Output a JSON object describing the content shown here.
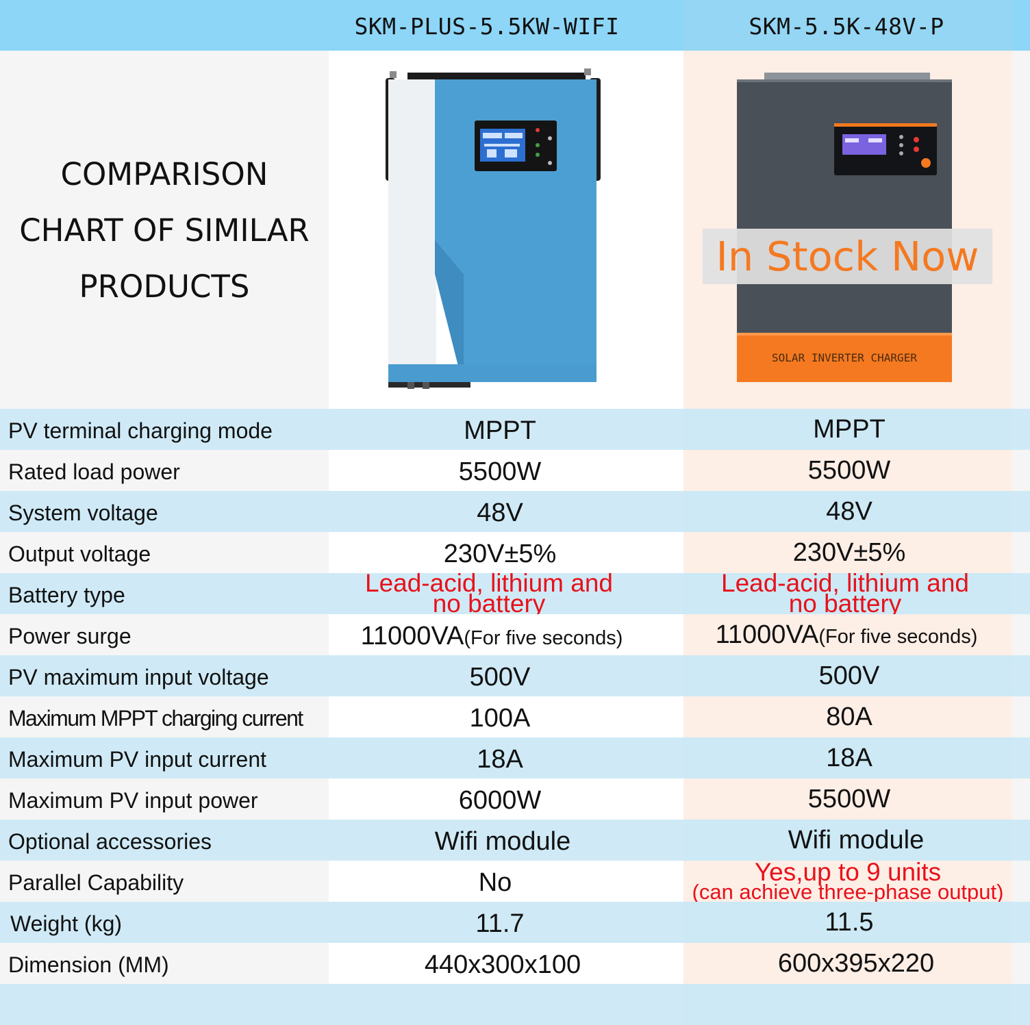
{
  "header": {
    "product_1": "SKM-PLUS-5.5KW-WIFI",
    "product_2": "SKM-5.5K-48V-P"
  },
  "heading": {
    "line1": "COMPARISON",
    "line2": "CHART OF SIMILAR",
    "line3": "PRODUCTS"
  },
  "product_2_image": {
    "panel_label": "SOLAR INVERTER CHARGER",
    "badge": "In Stock Now"
  },
  "colors": {
    "header_band": "#8dd6f7",
    "row_alt": "#cfeaf6",
    "right_column": "#fdeee6",
    "highlight_red": "#e8111a",
    "badge_orange": "#f47920",
    "product_1_blue": "#4c9fd3",
    "product_2_gray": "#4a5058"
  },
  "specs": [
    {
      "label": "PV terminal charging mode",
      "v1": "MPPT",
      "v2": "MPPT"
    },
    {
      "label": "Rated load power",
      "v1": "5500W",
      "v2": "5500W"
    },
    {
      "label": "System voltage",
      "v1": "48V",
      "v2": "48V"
    },
    {
      "label": "Output voltage",
      "v1": "230V±5%",
      "v2": "230V±5%"
    },
    {
      "label": "Battery type",
      "v1_line1": "Lead-acid, lithium and",
      "v1_line2": "no battery",
      "v2_line1": "Lead-acid, lithium and",
      "v2_line2": "no battery"
    },
    {
      "label": "Power surge",
      "v1_main": "11000VA",
      "v1_note": "(For five seconds)",
      "v2_main": "11000VA",
      "v2_note": "(For five seconds)"
    },
    {
      "label": "PV maximum input voltage",
      "v1": "500V",
      "v2": "500V"
    },
    {
      "label": "Maximum MPPT charging current",
      "v1": "100A",
      "v2": "80A"
    },
    {
      "label": "Maximum PV input current",
      "v1": "18A",
      "v2": "18A"
    },
    {
      "label": "Maximum PV input power",
      "v1": "6000W",
      "v2": "5500W"
    },
    {
      "label": "Optional accessories",
      "v1": "Wifi module",
      "v2": "Wifi module"
    },
    {
      "label": "Parallel Capability",
      "v1": "No",
      "v2_line1": "Yes,up to 9 units",
      "v2_line2": "(can achieve three-phase output)"
    },
    {
      "label": "Weight (kg)",
      "v1": "11.7",
      "v2": "11.5"
    },
    {
      "label": "Dimension (MM)",
      "v1": "440x300x100",
      "v2": "600x395x220"
    }
  ]
}
